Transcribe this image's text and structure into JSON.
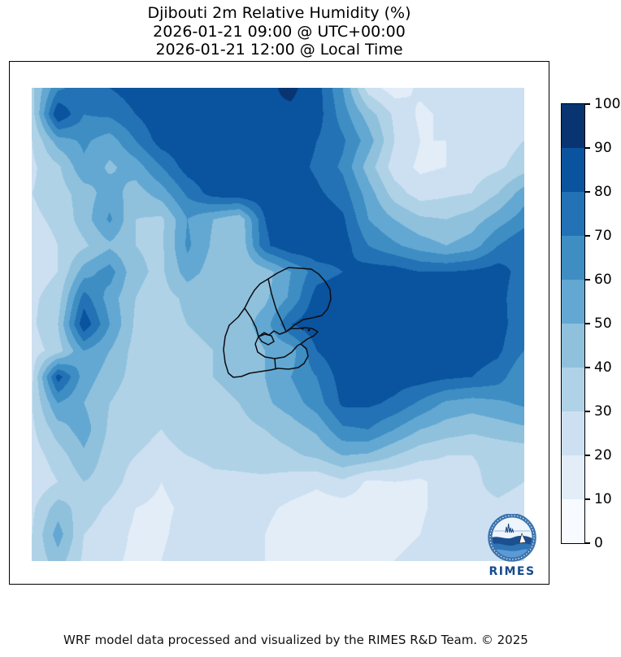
{
  "title": {
    "line1": "Djibouti 2m Relative Humidity (%)",
    "line2": "2026-01-21 09:00 @ UTC+00:00",
    "line3": "2026-01-21 12:00 @ Local Time"
  },
  "footer": {
    "text": "WRF model data processed and visualized by the RIMES R&D Team. © 2025"
  },
  "logo": {
    "text": "RIMES"
  },
  "colorbar": {
    "ticks": [
      0,
      10,
      20,
      30,
      40,
      50,
      60,
      70,
      80,
      90,
      100
    ],
    "unit": "%"
  },
  "chart_data": {
    "type": "heatmap",
    "title": "Djibouti 2m Relative Humidity (%)",
    "valid_utc": "2026-01-21 09:00 @ UTC+00:00",
    "valid_local": "2026-01-21 12:00 @ Local Time",
    "units": "%",
    "levels": [
      0,
      10,
      20,
      30,
      40,
      50,
      60,
      70,
      80,
      90,
      100
    ],
    "palette": [
      "#f7fbff",
      "#e2edf8",
      "#cde0f1",
      "#b0d2e7",
      "#8fc1dd",
      "#63a8d2",
      "#3e8ec4",
      "#2272b5",
      "#0a539e",
      "#083572"
    ],
    "legend_position": "right-colorbar",
    "grid": {
      "cols": 20,
      "rows": 19,
      "values": [
        [
          38,
          68,
          75,
          80,
          85,
          88,
          85,
          82,
          85,
          88,
          92,
          85,
          60,
          25,
          15,
          22,
          25,
          25,
          25,
          28
        ],
        [
          35,
          90,
          70,
          72,
          80,
          88,
          88,
          85,
          88,
          90,
          88,
          85,
          65,
          45,
          28,
          18,
          22,
          25,
          25,
          28
        ],
        [
          30,
          55,
          62,
          55,
          70,
          85,
          88,
          88,
          88,
          88,
          88,
          80,
          72,
          55,
          30,
          20,
          20,
          22,
          25,
          30
        ],
        [
          28,
          38,
          58,
          48,
          55,
          70,
          85,
          88,
          88,
          88,
          85,
          78,
          68,
          45,
          25,
          18,
          20,
          25,
          28,
          35
        ],
        [
          30,
          35,
          45,
          55,
          45,
          55,
          72,
          85,
          88,
          88,
          88,
          82,
          75,
          55,
          35,
          25,
          28,
          30,
          40,
          55
        ],
        [
          28,
          32,
          45,
          62,
          40,
          38,
          60,
          50,
          42,
          80,
          88,
          88,
          82,
          60,
          50,
          42,
          40,
          45,
          55,
          65
        ],
        [
          25,
          30,
          38,
          48,
          40,
          38,
          62,
          48,
          40,
          78,
          88,
          88,
          85,
          70,
          62,
          55,
          50,
          55,
          70,
          80
        ],
        [
          25,
          30,
          55,
          65,
          42,
          38,
          55,
          45,
          40,
          45,
          60,
          75,
          80,
          85,
          85,
          80,
          80,
          82,
          85,
          75
        ],
        [
          28,
          35,
          75,
          55,
          40,
          36,
          42,
          40,
          42,
          48,
          62,
          85,
          88,
          88,
          85,
          85,
          85,
          85,
          85,
          70
        ],
        [
          28,
          40,
          88,
          60,
          38,
          36,
          40,
          42,
          45,
          55,
          80,
          88,
          88,
          88,
          85,
          85,
          85,
          85,
          85,
          72
        ],
        [
          25,
          35,
          60,
          50,
          36,
          35,
          38,
          40,
          42,
          50,
          55,
          80,
          88,
          88,
          88,
          85,
          85,
          85,
          82,
          70
        ],
        [
          28,
          85,
          55,
          45,
          36,
          35,
          36,
          40,
          42,
          50,
          60,
          70,
          85,
          85,
          85,
          85,
          82,
          80,
          75,
          60
        ],
        [
          30,
          60,
          50,
          40,
          33,
          32,
          35,
          38,
          40,
          48,
          55,
          65,
          82,
          82,
          78,
          68,
          58,
          55,
          58,
          62
        ],
        [
          28,
          45,
          55,
          38,
          32,
          30,
          33,
          35,
          36,
          40,
          45,
          52,
          68,
          70,
          60,
          50,
          45,
          42,
          45,
          48
        ],
        [
          25,
          35,
          48,
          35,
          30,
          28,
          30,
          32,
          33,
          35,
          38,
          42,
          50,
          48,
          40,
          33,
          30,
          30,
          32,
          33
        ],
        [
          22,
          30,
          40,
          35,
          25,
          20,
          25,
          28,
          28,
          28,
          25,
          22,
          28,
          18,
          20,
          18,
          25,
          28,
          33,
          30
        ],
        [
          28,
          45,
          35,
          28,
          20,
          18,
          22,
          25,
          25,
          22,
          18,
          15,
          15,
          15,
          15,
          18,
          25,
          28,
          28,
          26
        ],
        [
          30,
          55,
          30,
          25,
          18,
          18,
          25,
          28,
          25,
          20,
          15,
          14,
          14,
          15,
          15,
          20,
          28,
          30,
          30,
          25
        ],
        [
          32,
          45,
          28,
          22,
          18,
          20,
          28,
          30,
          25,
          20,
          16,
          15,
          16,
          18,
          20,
          25,
          30,
          28,
          25,
          22
        ]
      ]
    },
    "boundaries": {
      "name": "Djibouti administrative boundaries",
      "stroke": "#0d0d12",
      "polylines": [
        [
          [
            291,
            235
          ],
          [
            302,
            228
          ],
          [
            316,
            221
          ],
          [
            331,
            222
          ],
          [
            344,
            223
          ],
          [
            353,
            229
          ],
          [
            361,
            238
          ],
          [
            367,
            248
          ],
          [
            368,
            260
          ],
          [
            364,
            272
          ],
          [
            357,
            280
          ],
          [
            345,
            283
          ],
          [
            334,
            285
          ],
          [
            323,
            292
          ],
          [
            313,
            300
          ]
        ],
        [
          [
            313,
            300
          ],
          [
            305,
            303
          ],
          [
            298,
            299
          ],
          [
            292,
            304
          ],
          [
            286,
            301
          ],
          [
            279,
            306
          ]
        ],
        [
          [
            279,
            306
          ],
          [
            283,
            312
          ],
          [
            291,
            316
          ],
          [
            298,
            312
          ],
          [
            295,
            305
          ],
          [
            287,
            303
          ],
          [
            279,
            306
          ]
        ],
        [
          [
            291,
            235
          ],
          [
            281,
            241
          ],
          [
            274,
            249
          ],
          [
            268,
            259
          ],
          [
            262,
            271
          ],
          [
            254,
            282
          ],
          [
            243,
            292
          ]
        ],
        [
          [
            243,
            292
          ],
          [
            238,
            306
          ],
          [
            236,
            322
          ],
          [
            238,
            338
          ],
          [
            242,
            351
          ],
          [
            248,
            356
          ],
          [
            258,
            355
          ],
          [
            268,
            351
          ],
          [
            281,
            349
          ],
          [
            294,
            347
          ],
          [
            303,
            345
          ]
        ],
        [
          [
            303,
            345
          ],
          [
            316,
            346
          ],
          [
            328,
            344
          ],
          [
            335,
            339
          ]
        ],
        [
          [
            335,
            339
          ],
          [
            340,
            330
          ],
          [
            338,
            321
          ],
          [
            331,
            315
          ]
        ],
        [
          [
            331,
            315
          ],
          [
            339,
            309
          ],
          [
            347,
            305
          ],
          [
            352,
            300
          ],
          [
            345,
            296
          ],
          [
            336,
            295
          ],
          [
            327,
            296
          ],
          [
            319,
            296
          ],
          [
            313,
            300
          ]
        ],
        [
          [
            291,
            235
          ],
          [
            295,
            253
          ],
          [
            301,
            273
          ],
          [
            308,
            288
          ],
          [
            313,
            300
          ]
        ],
        [
          [
            279,
            306
          ],
          [
            275,
            315
          ],
          [
            278,
            325
          ],
          [
            287,
            331
          ],
          [
            299,
            333
          ],
          [
            311,
            331
          ],
          [
            320,
            325
          ],
          [
            327,
            317
          ],
          [
            331,
            315
          ]
        ],
        [
          [
            299,
            333
          ],
          [
            300,
            345
          ]
        ],
        [
          [
            262,
            271
          ],
          [
            270,
            283
          ],
          [
            276,
            295
          ],
          [
            279,
            306
          ]
        ]
      ],
      "city_marks": [
        [
          333,
          296
        ],
        [
          341,
          298
        ]
      ]
    }
  }
}
